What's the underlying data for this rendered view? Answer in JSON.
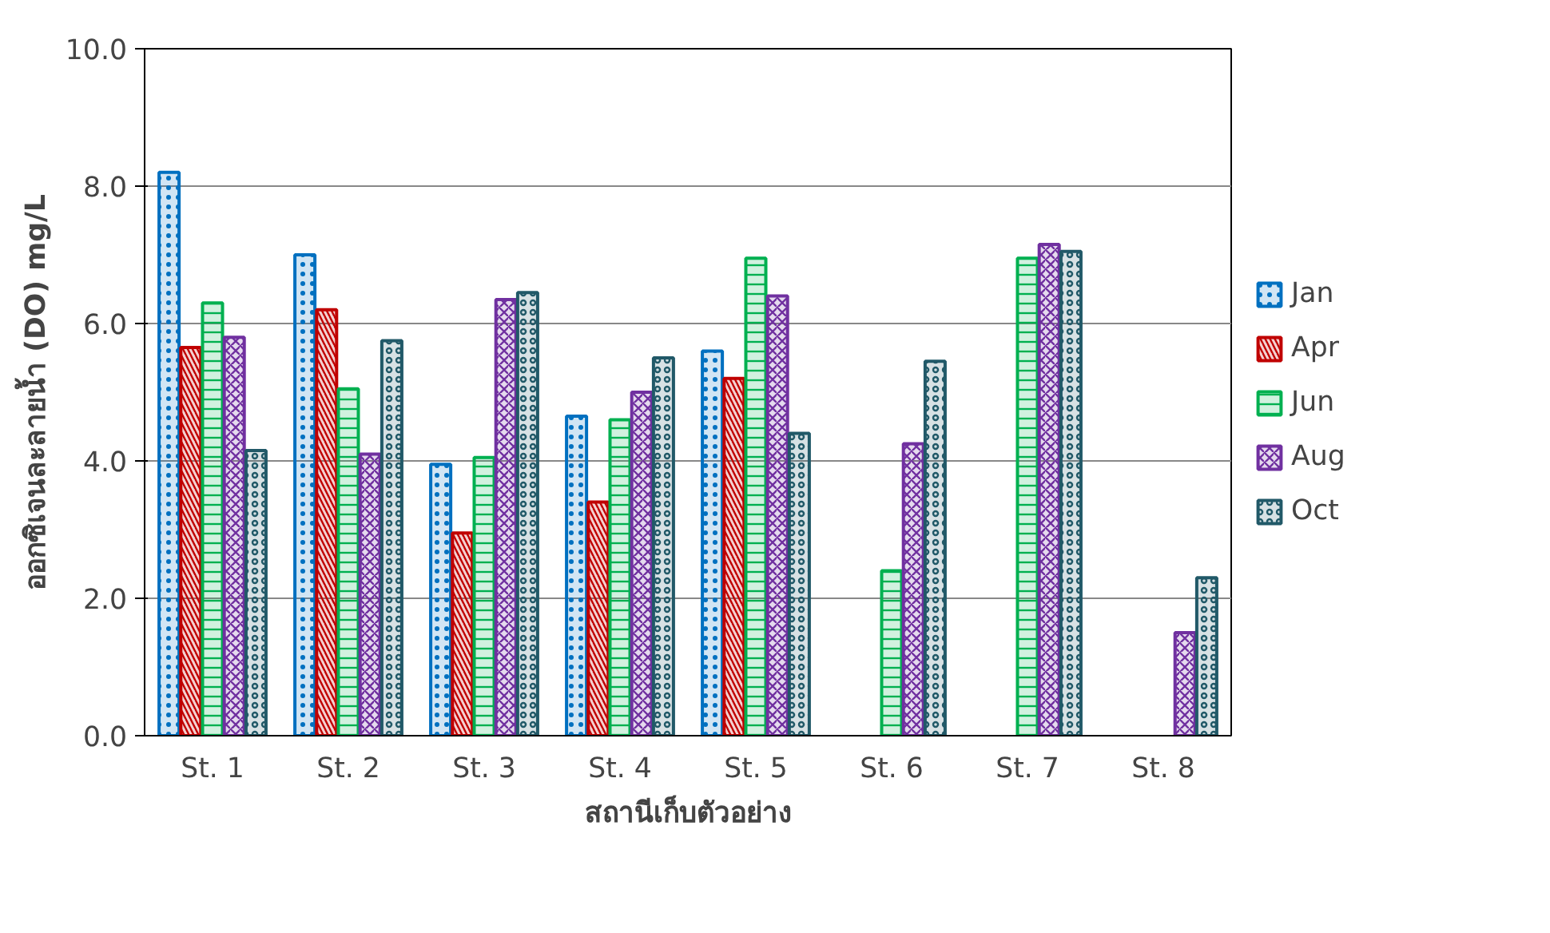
{
  "chart_data": {
    "type": "bar",
    "xlabel": "สถานีเก็บตัวอย่าง",
    "ylabel": "ออกซิเจนละลายน้ำ (DO) mg/L",
    "categories": [
      "St. 1",
      "St. 2",
      "St. 3",
      "St. 4",
      "St. 5",
      "St. 6",
      "St. 7",
      "St. 8"
    ],
    "series": [
      {
        "name": "Jan",
        "color": "#0070c0",
        "values": [
          8.2,
          7.0,
          3.95,
          4.65,
          5.6,
          null,
          null,
          null
        ]
      },
      {
        "name": "Apr",
        "color": "#c00000",
        "values": [
          5.65,
          6.2,
          2.95,
          3.4,
          5.2,
          null,
          null,
          null
        ]
      },
      {
        "name": "Jun",
        "color": "#00b050",
        "values": [
          6.3,
          5.05,
          4.05,
          4.6,
          6.95,
          2.4,
          6.95,
          null
        ]
      },
      {
        "name": "Aug",
        "color": "#7030a0",
        "values": [
          5.8,
          4.1,
          6.35,
          5.0,
          6.4,
          4.25,
          7.15,
          1.5
        ]
      },
      {
        "name": "Oct",
        "color": "#215968",
        "values": [
          4.15,
          5.75,
          6.45,
          5.5,
          4.4,
          5.45,
          7.05,
          2.3
        ]
      }
    ],
    "ylim": [
      0,
      10
    ],
    "yticks": [
      {
        "value": 0,
        "label": "0.0"
      },
      {
        "value": 2,
        "label": "2.0"
      },
      {
        "value": 4,
        "label": "4.0"
      },
      {
        "value": 6,
        "label": "6.0"
      },
      {
        "value": 8,
        "label": "8.0"
      },
      {
        "value": 10,
        "label": "10.0"
      }
    ],
    "grid": "y",
    "legend": "right"
  }
}
